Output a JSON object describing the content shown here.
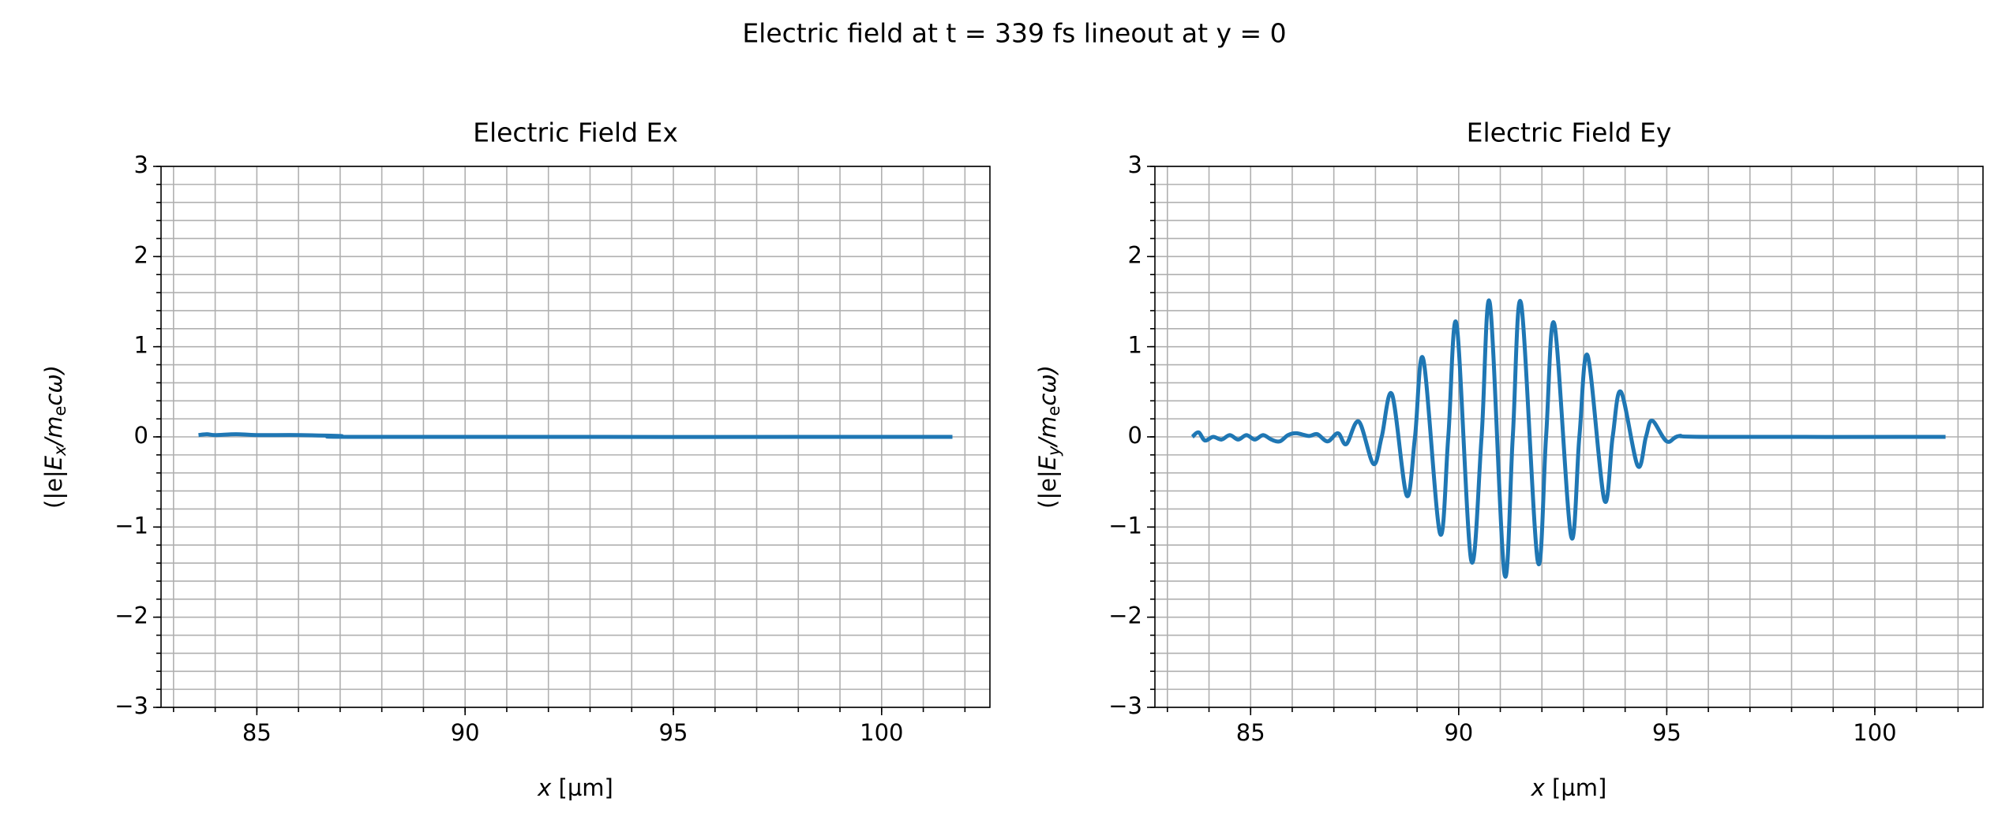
{
  "suptitle": "Electric field at t = 339 fs lineout at y = 0",
  "chart_data": [
    {
      "type": "line",
      "title": "Electric Field Ex",
      "xlabel": [
        "x",
        " [µm]"
      ],
      "ylabel": [
        "(|e|",
        "E",
        "x",
        "/",
        "m",
        "e",
        "cω)"
      ],
      "xlim": [
        82.7,
        102.6
      ],
      "ylim": [
        -3,
        3
      ],
      "xticks": [
        85,
        90,
        95,
        100
      ],
      "yticks": [
        {
          "value": -3,
          "label": "−3"
        },
        {
          "value": -2,
          "label": "−2"
        },
        {
          "value": -1,
          "label": "−1"
        },
        0,
        1,
        2,
        3
      ],
      "xticks_minor": [
        83,
        84,
        85,
        86,
        87,
        88,
        89,
        90,
        91,
        92,
        93,
        94,
        95,
        96,
        97,
        98,
        99,
        100,
        101,
        102
      ],
      "yticks_minor": [
        -3,
        -2.8,
        -2.6,
        -2.4,
        -2.2,
        -2,
        -1.8,
        -1.6,
        -1.4,
        -1.2,
        -1,
        -0.8,
        -0.6,
        -0.4,
        -0.2,
        0,
        0.2,
        0.4,
        0.6,
        0.8,
        1,
        1.2,
        1.4,
        1.6,
        1.8,
        2,
        2.2,
        2.4,
        2.6,
        2.8,
        3
      ],
      "grid": true,
      "series": [
        {
          "color": "#1f77b4",
          "x": [
            83.6,
            83.8,
            84.0,
            84.5,
            85.0,
            86.0,
            87.0,
            88.0,
            101.7
          ],
          "values": [
            0.02,
            0.03,
            0.02,
            0.03,
            0.02,
            0.02,
            0.01,
            0,
            0
          ]
        }
      ]
    },
    {
      "type": "line",
      "title": "Electric Field Ey",
      "xlabel": [
        "x",
        " [µm]"
      ],
      "ylabel": [
        "(|e|",
        "E",
        "y",
        "/",
        "m",
        "e",
        "cω)"
      ],
      "xlim": [
        82.7,
        102.6
      ],
      "ylim": [
        -3,
        3
      ],
      "xticks": [
        85,
        90,
        95,
        100
      ],
      "yticks": [
        {
          "value": -3,
          "label": "−3"
        },
        {
          "value": -2,
          "label": "−2"
        },
        {
          "value": -1,
          "label": "−1"
        },
        0,
        1,
        2,
        3
      ],
      "xticks_minor": [
        83,
        84,
        85,
        86,
        87,
        88,
        89,
        90,
        91,
        92,
        93,
        94,
        95,
        96,
        97,
        98,
        99,
        100,
        101,
        102
      ],
      "yticks_minor": [
        -3,
        -2.8,
        -2.6,
        -2.4,
        -2.2,
        -2,
        -1.8,
        -1.6,
        -1.4,
        -1.2,
        -1,
        -0.8,
        -0.6,
        -0.4,
        -0.2,
        0,
        0.2,
        0.4,
        0.6,
        0.8,
        1,
        1.2,
        1.4,
        1.6,
        1.8,
        2,
        2.2,
        2.4,
        2.6,
        2.8,
        3
      ],
      "grid": true,
      "series": [
        {
          "color": "#1f77b4",
          "x": [
            83.6,
            83.75,
            83.9,
            84.1,
            84.3,
            84.5,
            84.7,
            84.9,
            85.1,
            85.3,
            85.5,
            85.7,
            85.9,
            86.1,
            86.4,
            86.6,
            86.85,
            87.1,
            87.3,
            87.6,
            87.95,
            88.15,
            88.4,
            88.75,
            88.95,
            89.15,
            89.55,
            89.75,
            89.95,
            90.3,
            90.55,
            90.75,
            91.1,
            91.3,
            91.5,
            91.9,
            92.1,
            92.3,
            92.7,
            92.9,
            93.1,
            93.5,
            93.7,
            93.9,
            94.3,
            94.5,
            94.65,
            95.0,
            95.3,
            96.0,
            101.7
          ],
          "values": [
            0,
            0.05,
            -0.04,
            0,
            -0.03,
            0.02,
            -0.03,
            0.02,
            -0.03,
            0.02,
            -0.03,
            -0.05,
            0.02,
            0.04,
            0.01,
            0.03,
            -0.05,
            0.04,
            -0.08,
            0.17,
            -0.3,
            0,
            0.47,
            -0.65,
            0,
            0.86,
            -1.07,
            0,
            1.25,
            -1.37,
            0,
            1.48,
            -1.52,
            0,
            1.48,
            -1.38,
            0,
            1.25,
            -1.1,
            0,
            0.9,
            -0.7,
            0,
            0.5,
            -0.32,
            0,
            0.18,
            -0.05,
            0.01,
            0,
            0
          ]
        }
      ]
    }
  ]
}
